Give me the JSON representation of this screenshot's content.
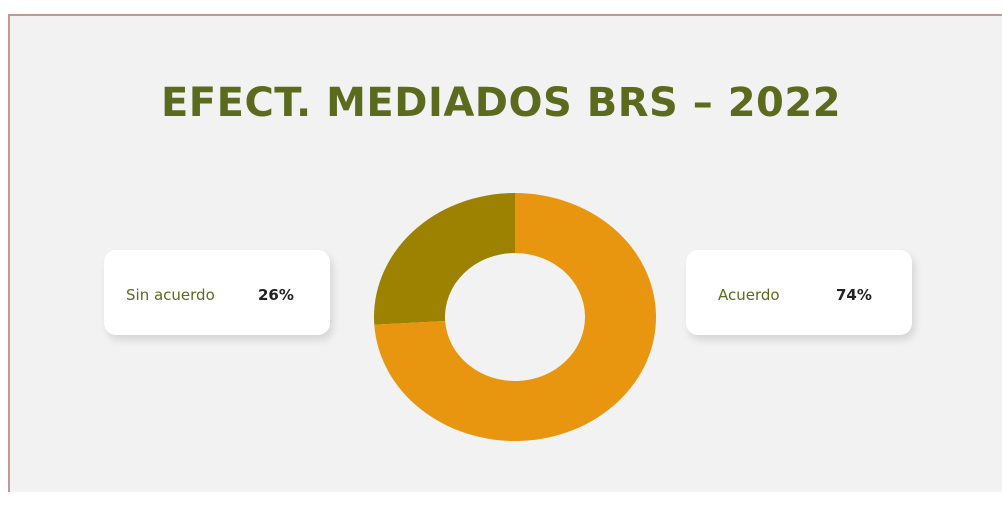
{
  "chart_data": {
    "type": "donut",
    "title": "EFECT. MEDIADOS BRS – 2022",
    "categories": [
      "Sin acuerdo",
      "Acuerdo"
    ],
    "values": [
      26,
      74
    ],
    "value_labels": [
      "26%",
      "74%"
    ],
    "colors": [
      "#9c8200",
      "#e8960f"
    ]
  }
}
